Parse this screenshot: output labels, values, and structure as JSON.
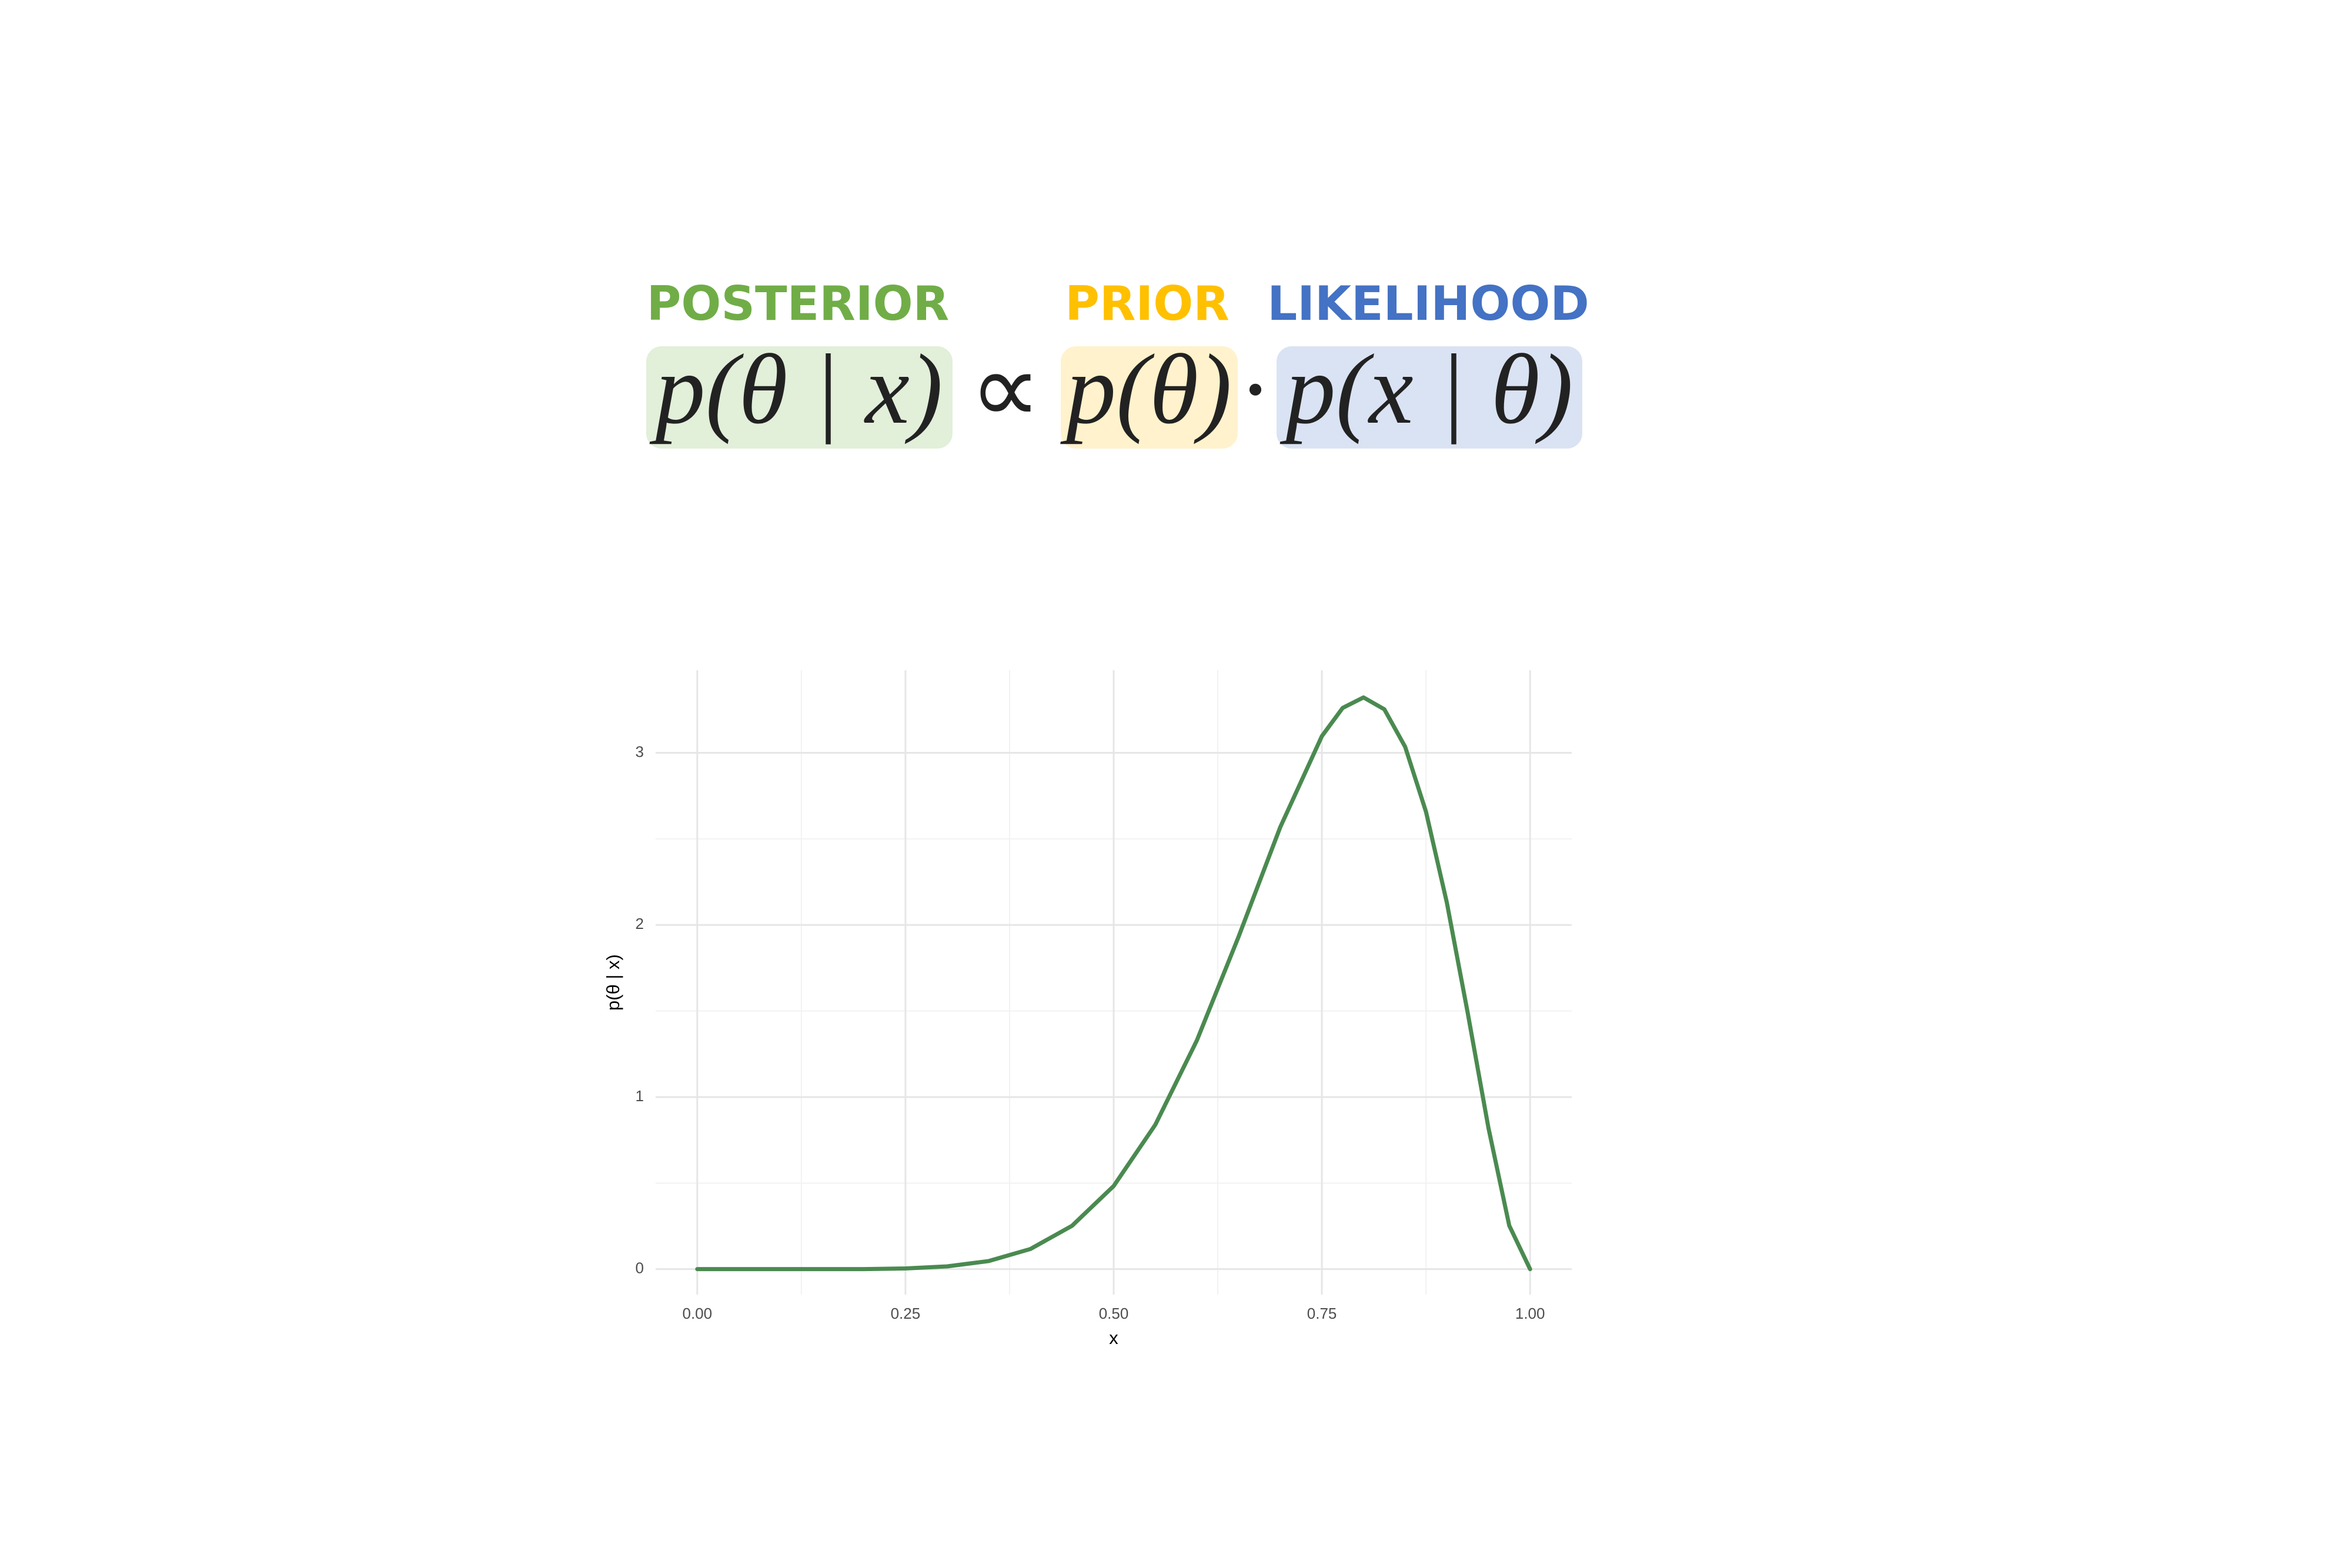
{
  "header": {
    "posterior": {
      "label": "POSTERIOR",
      "formula": "p(θ | x)",
      "color": "#70ad47",
      "fill": "#e2efd9"
    },
    "proportional": "∝",
    "prior": {
      "label": "PRIOR",
      "formula": "p(θ)",
      "color": "#ffc000",
      "fill": "#fff2cc"
    },
    "dot": "·",
    "likelihood": {
      "label": "LIKELIHOOD",
      "formula": "p(x | θ)",
      "color": "#4472c4",
      "fill": "#dae3f3"
    }
  },
  "chart_data": {
    "type": "line",
    "x_label": "x",
    "y_label": "p(θ | x)",
    "x": [
      0,
      0.05,
      0.1,
      0.15,
      0.2,
      0.25,
      0.3,
      0.35,
      0.4,
      0.45,
      0.5,
      0.55,
      0.6,
      0.65,
      0.7,
      0.75,
      0.775,
      0.8,
      0.825,
      0.85,
      0.875,
      0.9,
      0.925,
      0.95,
      0.975,
      1
    ],
    "series": [
      {
        "name": "posterior",
        "color": "#4a8a50",
        "values": [
          0,
          0,
          0,
          0,
          0,
          0.004,
          0.016,
          0.047,
          0.117,
          0.252,
          0.483,
          0.839,
          1.33,
          1.932,
          2.568,
          3.097,
          3.261,
          3.322,
          3.253,
          3.035,
          2.658,
          2.131,
          1.492,
          0.821,
          0.253,
          0
        ]
      }
    ],
    "xlim": [
      -0.05,
      1.05
    ],
    "ylim": [
      -0.148,
      3.48
    ],
    "xticks": [
      {
        "value": 0,
        "label": "0.00"
      },
      {
        "value": 0.25,
        "label": "0.25"
      },
      {
        "value": 0.5,
        "label": "0.50"
      },
      {
        "value": 0.75,
        "label": "0.75"
      },
      {
        "value": 1,
        "label": "1.00"
      }
    ],
    "yticks": [
      0,
      1,
      2,
      3
    ],
    "grid": true
  }
}
